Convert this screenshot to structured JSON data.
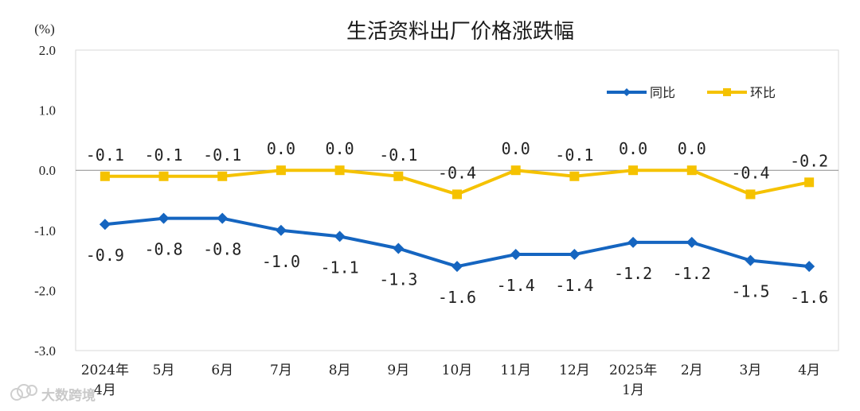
{
  "chart_data": {
    "type": "line",
    "title": "生活资料出厂价格涨跌幅",
    "unit": "(%)",
    "categories": [
      [
        "2024年",
        "4月"
      ],
      [
        "5月"
      ],
      [
        "6月"
      ],
      [
        "7月"
      ],
      [
        "8月"
      ],
      [
        "9月"
      ],
      [
        "10月"
      ],
      [
        "11月"
      ],
      [
        "12月"
      ],
      [
        "2025年",
        "1月"
      ],
      [
        "2月"
      ],
      [
        "3月"
      ],
      [
        "4月"
      ]
    ],
    "ylim": [
      -3.0,
      2.0
    ],
    "yticks": [
      "2.0",
      "1.0",
      "0.0",
      "-1.0",
      "-2.0",
      "-3.0"
    ],
    "ytick_values": [
      2.0,
      1.0,
      0.0,
      -1.0,
      -2.0,
      -3.0
    ],
    "grid": false,
    "legend_position": "top-right",
    "series": [
      {
        "name": "同比",
        "color": "#1565c0",
        "marker": "diamond",
        "label_position": "below",
        "values": [
          -0.9,
          -0.8,
          -0.8,
          -1.0,
          -1.1,
          -1.3,
          -1.6,
          -1.4,
          -1.4,
          -1.2,
          -1.2,
          -1.5,
          -1.6
        ],
        "labels": [
          "-0.9",
          "-0.8",
          "-0.8",
          "-1.0",
          "-1.1",
          "-1.3",
          "-1.6",
          "-1.4",
          "-1.4",
          "-1.2",
          "-1.2",
          "-1.5",
          "-1.6"
        ]
      },
      {
        "name": "环比",
        "color": "#f5c200",
        "marker": "square",
        "label_position": "above",
        "values": [
          -0.1,
          -0.1,
          -0.1,
          0.0,
          0.0,
          -0.1,
          -0.4,
          0.0,
          -0.1,
          0.0,
          0.0,
          -0.4,
          -0.2
        ],
        "labels": [
          "-0.1",
          "-0.1",
          "-0.1",
          "0.0",
          "0.0",
          "-0.1",
          "-0.4",
          "0.0",
          "-0.1",
          "0.0",
          "0.0",
          "-0.4",
          "-0.2"
        ]
      }
    ]
  },
  "watermark": {
    "text": "大数跨境",
    "icon": "weibo-icon"
  }
}
